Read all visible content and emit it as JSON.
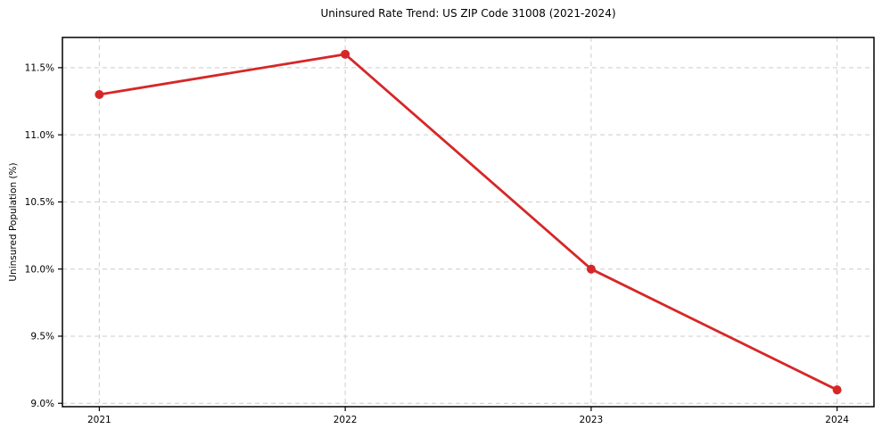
{
  "chart_data": {
    "type": "line",
    "title": "Uninsured Rate Trend: US ZIP Code 31008 (2021-2024)",
    "ylabel": "Uninsured Population (%)",
    "xlabel": "",
    "x": [
      2021,
      2022,
      2023,
      2024
    ],
    "values": [
      11.3,
      11.6,
      10.0,
      9.1
    ],
    "xtick_labels": [
      "2021",
      "2022",
      "2023",
      "2024"
    ],
    "ytick_values": [
      9.0,
      9.5,
      10.0,
      10.5,
      11.0,
      11.5
    ],
    "ytick_labels": [
      "9.0%",
      "9.5%",
      "10.0%",
      "10.5%",
      "11.0%",
      "11.5%"
    ],
    "xlim": [
      2020.85,
      2024.15
    ],
    "ylim": [
      8.975,
      11.725
    ],
    "grid": true,
    "grid_style": "dashed",
    "legend": false,
    "marker": "circle",
    "colors": {
      "line": "#d62728",
      "marker": "#d62728",
      "grid": "#cccccc",
      "spine": "#000000",
      "text": "#000000",
      "background": "#ffffff"
    }
  }
}
